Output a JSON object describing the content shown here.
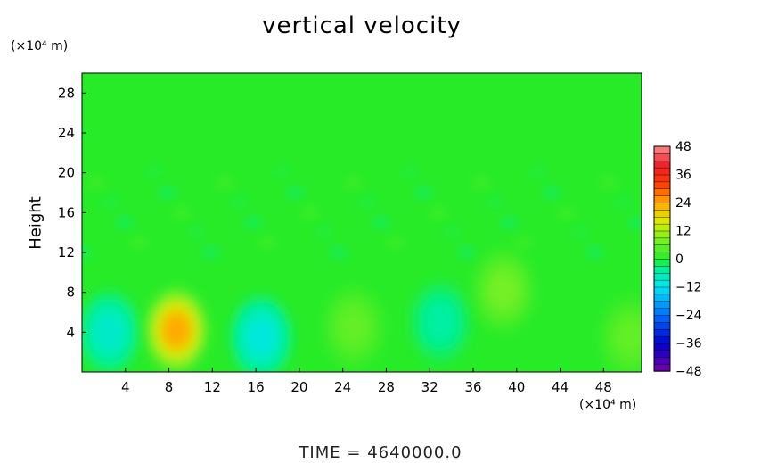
{
  "chart_data": {
    "type": "heatmap",
    "title": "vertical velocity",
    "ylabel": "Height",
    "x_unit": "(×10⁴ m)",
    "y_unit": "(×10⁴ m)",
    "x_ticks": [
      4,
      8,
      12,
      16,
      20,
      24,
      28,
      32,
      36,
      40,
      44,
      48
    ],
    "y_ticks": [
      4,
      8,
      12,
      16,
      20,
      24,
      28
    ],
    "xlim": [
      0,
      51.5
    ],
    "ylim": [
      0,
      30
    ],
    "colorbar": {
      "ticks": [
        48,
        36,
        24,
        12,
        0,
        -12,
        -24,
        -36,
        -48
      ],
      "range": [
        -48,
        48
      ]
    },
    "field_features": [
      {
        "x": 2.5,
        "y": 4,
        "value": -10
      },
      {
        "x": 8.7,
        "y": 4.2,
        "value": 28
      },
      {
        "x": 16.5,
        "y": 3.5,
        "value": -12
      },
      {
        "x": 25,
        "y": 4.5,
        "value": 7
      },
      {
        "x": 33,
        "y": 5,
        "value": -6
      },
      {
        "x": 38.8,
        "y": 8.2,
        "value": 9
      },
      {
        "x": 50.5,
        "y": 3.5,
        "value": 7
      }
    ],
    "grid": false
  },
  "footer": {
    "label": "TIME",
    "equals": "=",
    "value": "4640000.0"
  }
}
